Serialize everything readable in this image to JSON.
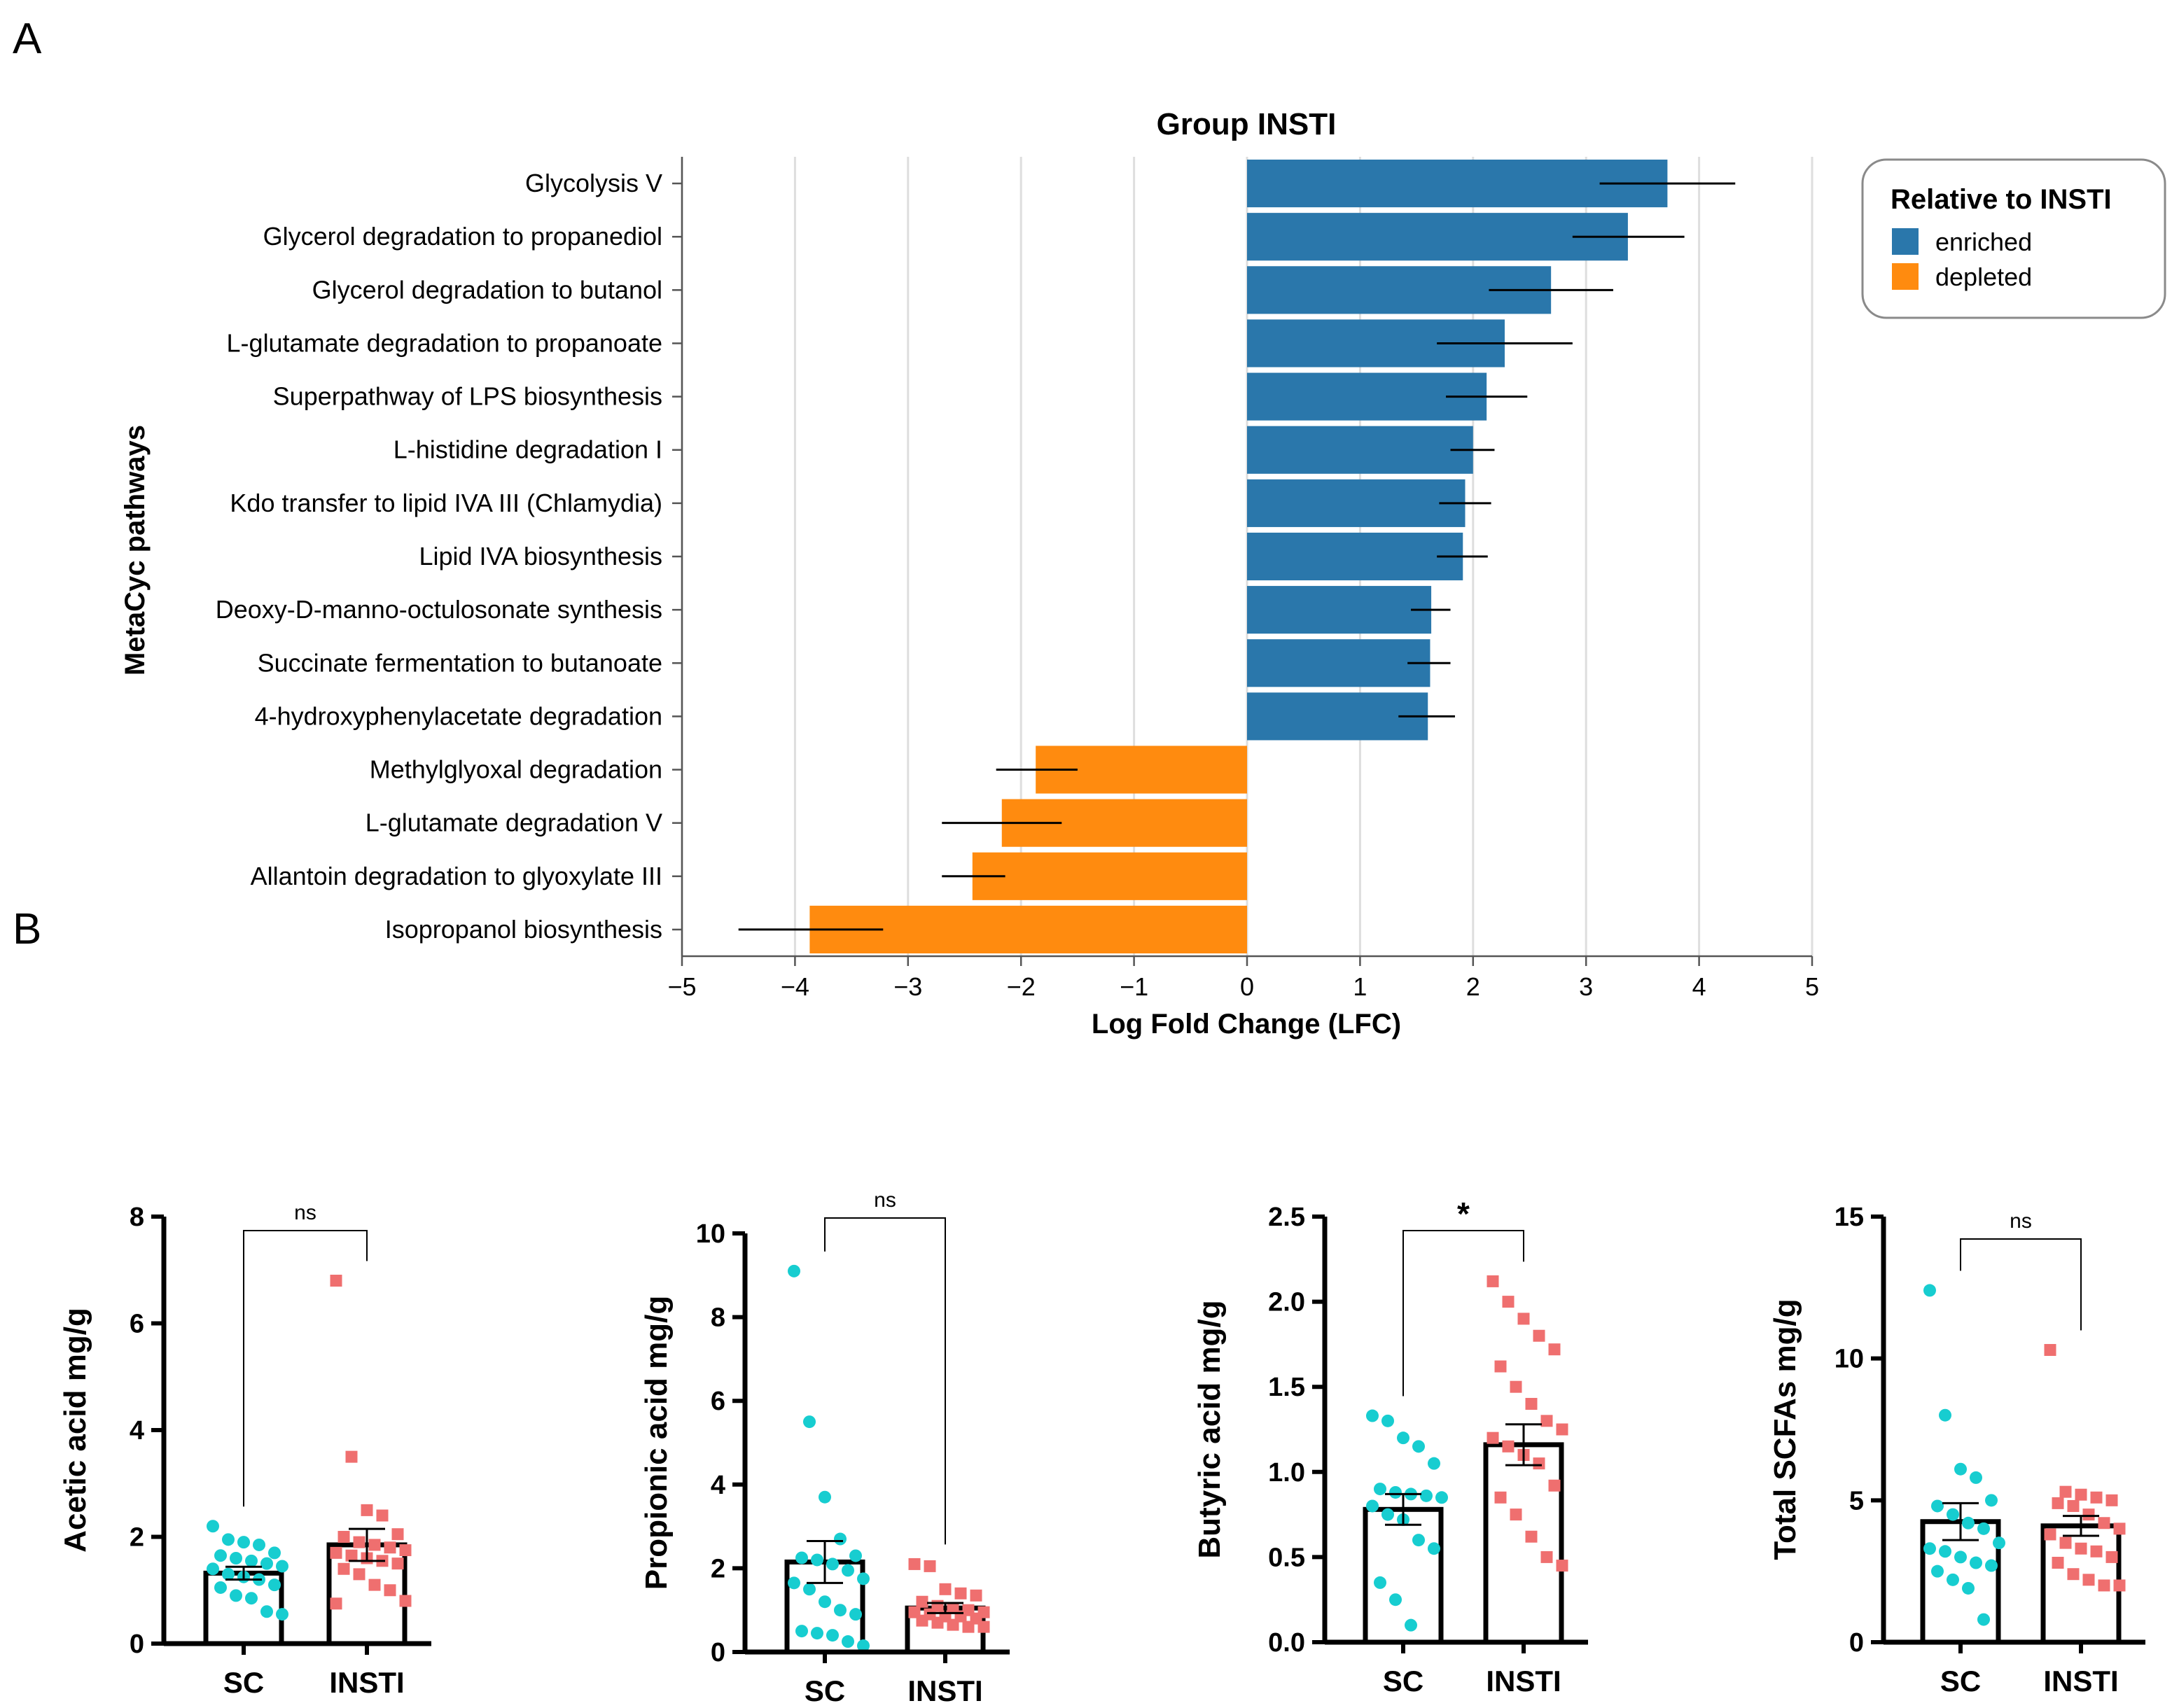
{
  "panels": {
    "a_letter": "A",
    "b_letter": "B"
  },
  "chart_data": [
    {
      "type": "bar",
      "orientation": "horizontal",
      "title": "Group INSTI",
      "xlabel": "Log Fold Change (LFC)",
      "ylabel": "MetaCyc pathways",
      "xlim": [
        -5,
        5
      ],
      "xticks": [
        "−5",
        "−4",
        "−3",
        "−2",
        "−1",
        "0",
        "1",
        "2",
        "3",
        "4",
        "5"
      ],
      "grid": true,
      "legend": {
        "title": "Relative to INSTI",
        "position": "top-right",
        "items": [
          {
            "label": "enriched",
            "color": "#2a77ab"
          },
          {
            "label": "depleted",
            "color": "#ff8b0f"
          }
        ]
      },
      "categories": [
        "Glycolysis V",
        "Glycerol degradation to propanediol",
        "Glycerol degradation to butanol",
        "L-glutamate degradation to propanoate",
        "Superpathway of LPS biosynthesis",
        "L-histidine degradation I",
        "Kdo transfer to lipid IVA III (Chlamydia)",
        "Lipid IVA biosynthesis",
        "Deoxy-D-manno-octulosonate synthesis",
        "Succinate fermentation to butanoate",
        "4-hydroxyphenylacetate degradation",
        "Methylglyoxal degradation",
        "L-glutamate degradation V",
        "Allantoin degradation to glyoxylate III",
        "Isopropanol biosynthesis"
      ],
      "values": [
        3.72,
        3.37,
        2.69,
        2.28,
        2.12,
        2.0,
        1.93,
        1.91,
        1.63,
        1.62,
        1.6,
        -1.87,
        -2.17,
        -2.43,
        -3.87
      ],
      "error_low": [
        3.12,
        2.88,
        2.14,
        1.68,
        1.76,
        1.8,
        1.7,
        1.68,
        1.45,
        1.42,
        1.34,
        -2.22,
        -2.7,
        -2.7,
        -4.5
      ],
      "error_high": [
        4.32,
        3.87,
        3.24,
        2.88,
        2.48,
        2.19,
        2.16,
        2.13,
        1.8,
        1.8,
        1.84,
        -1.5,
        -1.64,
        -2.14,
        -3.22
      ],
      "direction": [
        "enriched",
        "enriched",
        "enriched",
        "enriched",
        "enriched",
        "enriched",
        "enriched",
        "enriched",
        "enriched",
        "enriched",
        "enriched",
        "depleted",
        "depleted",
        "depleted",
        "depleted"
      ]
    },
    {
      "type": "bar",
      "ylabel": "Acetic acid mg/g",
      "categories": [
        "SC",
        "INSTI"
      ],
      "ylim": [
        0,
        8
      ],
      "yticks": [
        0,
        2,
        4,
        6,
        8
      ],
      "yticklabels": [
        "0",
        "2",
        "4",
        "6",
        "8"
      ],
      "means": [
        1.32,
        1.85
      ],
      "sem": [
        0.12,
        0.3
      ],
      "significance": "ns",
      "points": {
        "SC": [
          2.2,
          1.95,
          1.9,
          1.85,
          1.7,
          1.65,
          1.6,
          1.55,
          1.5,
          1.45,
          1.4,
          1.3,
          1.25,
          1.2,
          1.1,
          1.05,
          0.9,
          0.85,
          0.6,
          0.55
        ],
        "INSTI": [
          6.8,
          3.5,
          2.5,
          2.4,
          2.05,
          2.0,
          1.9,
          1.85,
          1.8,
          1.75,
          1.7,
          1.65,
          1.6,
          1.55,
          1.5,
          1.4,
          1.3,
          1.1,
          1.0,
          0.8,
          0.75
        ]
      },
      "colors": {
        "SC": "#17cdd0",
        "INSTI": "#ef6f6f"
      }
    },
    {
      "type": "bar",
      "ylabel": "Propionic acid mg/g",
      "categories": [
        "SC",
        "INSTI"
      ],
      "ylim": [
        0,
        10
      ],
      "yticks": [
        0,
        2,
        4,
        6,
        8,
        10
      ],
      "yticklabels": [
        "0",
        "2",
        "4",
        "6",
        "8",
        "10"
      ],
      "means": [
        2.15,
        1.05
      ],
      "sem": [
        0.5,
        0.12
      ],
      "significance": "ns",
      "points": {
        "SC": [
          9.1,
          5.5,
          3.7,
          2.7,
          2.3,
          2.25,
          2.2,
          2.1,
          1.95,
          1.75,
          1.65,
          1.5,
          1.2,
          1.0,
          0.9,
          0.5,
          0.45,
          0.4,
          0.25,
          0.15
        ],
        "INSTI": [
          2.1,
          2.05,
          1.5,
          1.4,
          1.35,
          1.2,
          1.1,
          1.05,
          1.0,
          0.95,
          0.95,
          0.9,
          0.85,
          0.85,
          0.8,
          0.75,
          0.7,
          0.65,
          0.6,
          0.6
        ]
      },
      "colors": {
        "SC": "#17cdd0",
        "INSTI": "#ef6f6f"
      }
    },
    {
      "type": "bar",
      "ylabel": "Butyric acid mg/g",
      "categories": [
        "SC",
        "INSTI"
      ],
      "ylim": [
        0,
        2.5
      ],
      "yticks": [
        0,
        0.5,
        1.0,
        1.5,
        2.0,
        2.5
      ],
      "yticklabels": [
        "0.0",
        "0.5",
        "1.0",
        "1.5",
        "2.0",
        "2.5"
      ],
      "means": [
        0.78,
        1.16
      ],
      "sem": [
        0.09,
        0.12
      ],
      "significance": "*",
      "points": {
        "SC": [
          1.33,
          1.3,
          1.2,
          1.15,
          1.05,
          0.9,
          0.88,
          0.87,
          0.86,
          0.85,
          0.8,
          0.75,
          0.72,
          0.6,
          0.55,
          0.35,
          0.25,
          0.1
        ],
        "INSTI": [
          2.12,
          2.0,
          1.9,
          1.8,
          1.72,
          1.62,
          1.5,
          1.4,
          1.3,
          1.25,
          1.2,
          1.15,
          1.1,
          1.05,
          0.92,
          0.85,
          0.75,
          0.62,
          0.5,
          0.45
        ]
      },
      "colors": {
        "SC": "#17cdd0",
        "INSTI": "#ef6f6f"
      }
    },
    {
      "type": "bar",
      "ylabel": "Total SCFAs mg/g",
      "categories": [
        "SC",
        "INSTI"
      ],
      "ylim": [
        0,
        15
      ],
      "yticks": [
        0,
        5,
        10,
        15
      ],
      "yticklabels": [
        "0",
        "5",
        "10",
        "15"
      ],
      "means": [
        4.25,
        4.1
      ],
      "sem": [
        0.65,
        0.35
      ],
      "significance": "ns",
      "points": {
        "SC": [
          12.4,
          8.0,
          6.1,
          5.8,
          5.0,
          4.8,
          4.5,
          4.2,
          4.0,
          3.5,
          3.3,
          3.2,
          3.0,
          2.8,
          2.7,
          2.5,
          2.2,
          1.9,
          0.8
        ],
        "INSTI": [
          10.3,
          5.3,
          5.2,
          5.1,
          5.0,
          4.9,
          4.8,
          4.5,
          4.2,
          4.0,
          3.8,
          3.5,
          3.3,
          3.2,
          3.0,
          2.8,
          2.4,
          2.2,
          2.0,
          2.0
        ]
      },
      "colors": {
        "SC": "#17cdd0",
        "INSTI": "#ef6f6f"
      }
    }
  ]
}
